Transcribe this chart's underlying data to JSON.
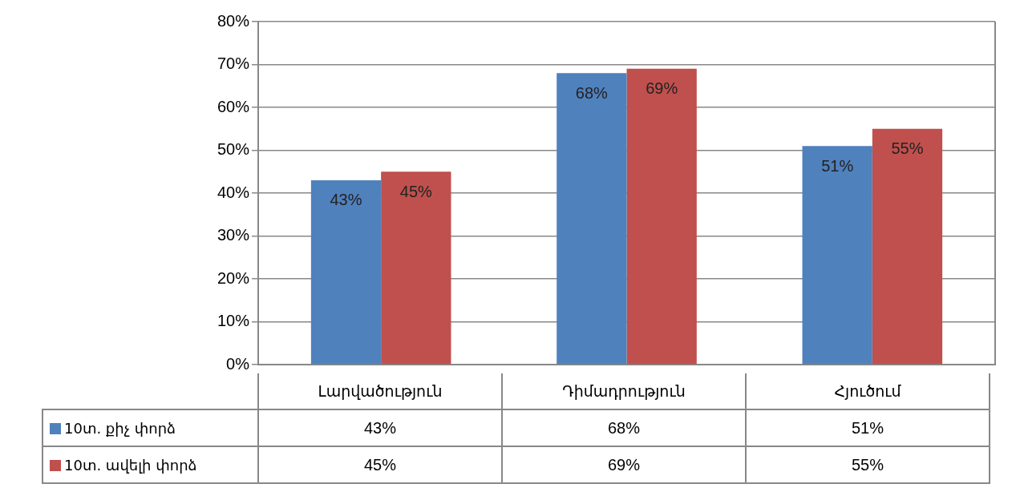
{
  "chart_data": {
    "type": "bar",
    "categories": [
      "Լարվածություն",
      "Դիմադրություն",
      "Հյուծում"
    ],
    "series": [
      {
        "name": "10տ. քիչ փորձ",
        "color": "#4f81bd",
        "values": [
          43,
          68,
          51
        ],
        "value_labels": [
          "43%",
          "68%",
          "51%"
        ]
      },
      {
        "name": "10տ. ավելի փորձ",
        "color": "#c0504d",
        "values": [
          45,
          69,
          55
        ],
        "value_labels": [
          "45%",
          "69%",
          "55%"
        ]
      }
    ],
    "ylim": [
      0,
      80
    ],
    "yticks": [
      {
        "value": 0,
        "label": "0%"
      },
      {
        "value": 10,
        "label": "10%"
      },
      {
        "value": 20,
        "label": "20%"
      },
      {
        "value": 30,
        "label": "30%"
      },
      {
        "value": 40,
        "label": "40%"
      },
      {
        "value": 50,
        "label": "50%"
      },
      {
        "value": 60,
        "label": "60%"
      },
      {
        "value": 70,
        "label": "70%"
      },
      {
        "value": 80,
        "label": "80%"
      }
    ],
    "grid": "y",
    "legend": "bottom"
  }
}
